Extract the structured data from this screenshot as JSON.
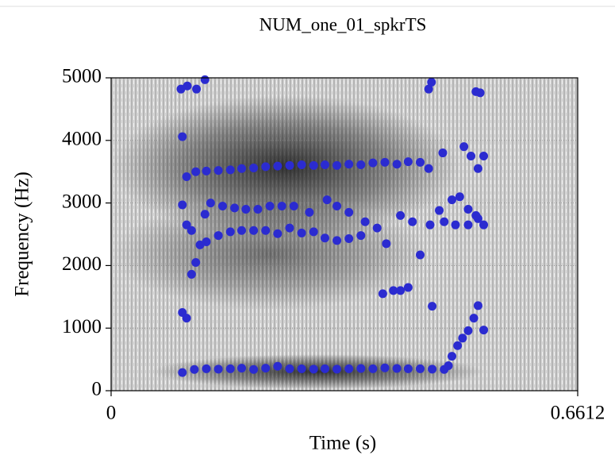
{
  "chart_data": {
    "type": "scatter",
    "title": "NUM_one_01_spkrTS",
    "xlabel": "Time (s)",
    "ylabel": "Frequency (Hz)",
    "xlim": [
      0,
      0.6612
    ],
    "xticks": [
      0,
      0.6612
    ],
    "ylim": [
      0,
      5000
    ],
    "yticks": [
      0,
      1000,
      2000,
      3000,
      4000,
      5000
    ],
    "grid": true,
    "series": [
      {
        "color": "#2b2bd0",
        "x": [
          0.101,
          0.118,
          0.135,
          0.152,
          0.169,
          0.185,
          0.202,
          0.219,
          0.236,
          0.253,
          0.27,
          0.287,
          0.303,
          0.32,
          0.337,
          0.354,
          0.371,
          0.388,
          0.405,
          0.421,
          0.438,
          0.455,
          0.472,
          0.478,
          0.483,
          0.491,
          0.498,
          0.506,
          0.514,
          0.52,
          0.528
        ],
        "values": [
          290,
          340,
          350,
          345,
          350,
          360,
          340,
          360,
          390,
          350,
          350,
          345,
          350,
          345,
          350,
          355,
          350,
          365,
          355,
          350,
          350,
          345,
          340,
          400,
          550,
          720,
          840,
          960,
          1160,
          1360,
          970
        ]
      },
      {
        "color": "#2b2bd0",
        "x": [
          0.101,
          0.107,
          0.114,
          0.12,
          0.126,
          0.135,
          0.152,
          0.169,
          0.185,
          0.202,
          0.219,
          0.236,
          0.253,
          0.27,
          0.287,
          0.303,
          0.32,
          0.337,
          0.354,
          0.385,
          0.4,
          0.41,
          0.421,
          0.438,
          0.455,
          0.472,
          0.488,
          0.506,
          0.52
        ],
        "values": [
          1250,
          1160,
          1860,
          2050,
          2330,
          2380,
          2480,
          2540,
          2560,
          2560,
          2560,
          2510,
          2600,
          2520,
          2540,
          2440,
          2400,
          2430,
          2480,
          1550,
          1600,
          1600,
          1650,
          2170,
          1350,
          2700,
          2650,
          2650,
          2750
        ]
      },
      {
        "color": "#2b2bd0",
        "x": [
          0.101,
          0.107,
          0.114,
          0.133,
          0.141,
          0.158,
          0.175,
          0.191,
          0.208,
          0.225,
          0.242,
          0.259,
          0.281,
          0.306,
          0.32,
          0.337,
          0.36,
          0.377,
          0.39,
          0.41,
          0.427,
          0.452,
          0.465,
          0.483,
          0.494,
          0.506,
          0.517,
          0.528
        ],
        "values": [
          2970,
          2650,
          2560,
          2820,
          3000,
          2950,
          2920,
          2900,
          2900,
          2950,
          2950,
          2950,
          2850,
          3050,
          2950,
          2850,
          2700,
          2600,
          2350,
          2800,
          2700,
          2650,
          2880,
          3050,
          3100,
          2900,
          2800,
          2650
        ]
      },
      {
        "color": "#2b2bd0",
        "x": [
          0.101,
          0.107,
          0.12,
          0.135,
          0.152,
          0.169,
          0.185,
          0.202,
          0.219,
          0.236,
          0.253,
          0.27,
          0.287,
          0.303,
          0.32,
          0.337,
          0.354,
          0.371,
          0.388,
          0.405,
          0.421,
          0.438,
          0.45,
          0.47,
          0.5,
          0.51,
          0.52,
          0.528
        ],
        "values": [
          4060,
          3420,
          3500,
          3510,
          3520,
          3530,
          3550,
          3560,
          3580,
          3590,
          3600,
          3610,
          3600,
          3610,
          3600,
          3620,
          3610,
          3640,
          3650,
          3620,
          3660,
          3650,
          3550,
          3800,
          3900,
          3750,
          3550,
          3750
        ]
      },
      {
        "color": "#2b2bd0",
        "x": [
          0.099,
          0.108,
          0.121,
          0.133,
          0.45,
          0.454,
          0.517,
          0.523
        ],
        "values": [
          4820,
          4870,
          4820,
          4970,
          4820,
          4930,
          4780,
          4760
        ]
      }
    ]
  }
}
